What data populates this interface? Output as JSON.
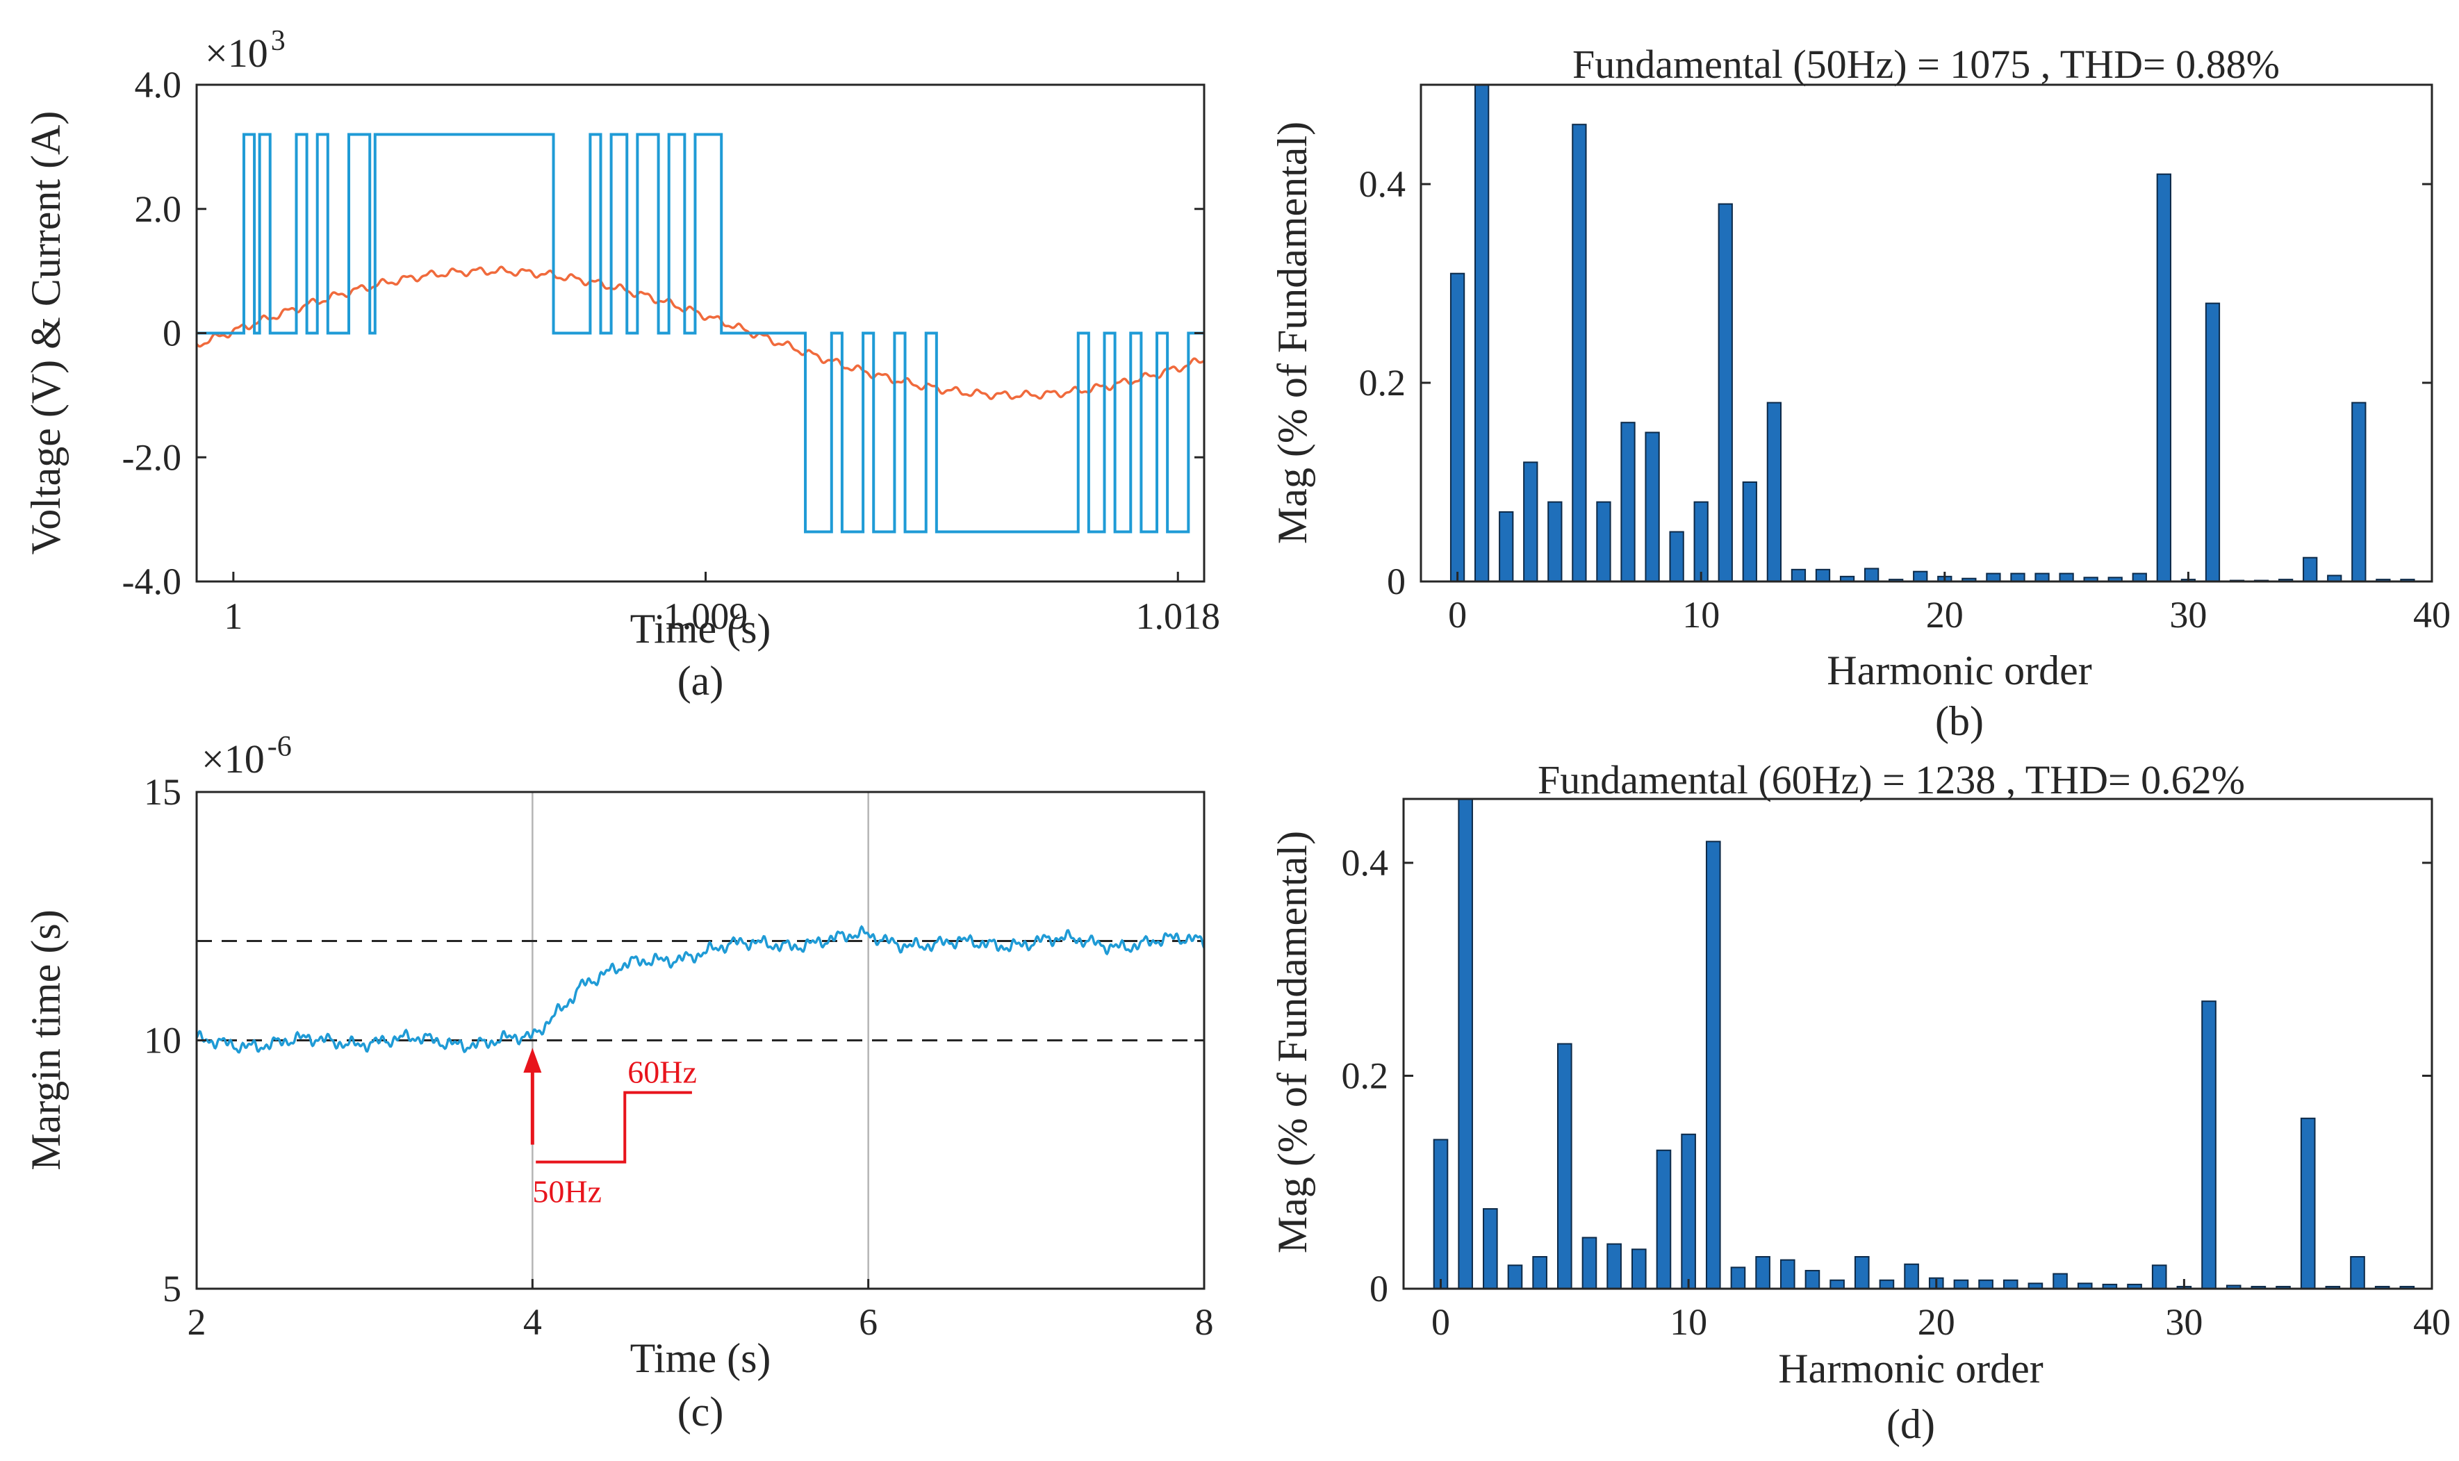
{
  "chart_data": [
    {
      "id": "a",
      "type": "line",
      "caption": "(a)",
      "xlabel": "Time (s)",
      "ylabel": "Voltage (V) & Current (A)",
      "multiplier": "×10",
      "multiplier_exp": "3",
      "xlim": [
        0.9993,
        1.0185
      ],
      "ylim": [
        -4.0,
        4.0
      ],
      "xticks": [
        1,
        1.009,
        1.018
      ],
      "xtick_labels": [
        "1",
        "1.009",
        "1.018"
      ],
      "yticks": [
        -4.0,
        -2.0,
        0,
        2.0,
        4.0
      ],
      "ytick_labels": [
        "-4.0",
        "-2.0",
        "0",
        "2.0",
        "4.0"
      ],
      "series": [
        {
          "name": "Voltage",
          "color": "#1f9bd6",
          "level": 3.2,
          "positive_transitions": [
            1.0002,
            1.0004,
            1.0005,
            1.0007,
            1.0012,
            1.0014,
            1.0016,
            1.0018,
            1.0022,
            1.0026,
            1.0027,
            1.0061,
            1.0068,
            1.007,
            1.0072,
            1.0075,
            1.0077,
            1.0081,
            1.0083,
            1.0086,
            1.0088,
            1.0093
          ],
          "negative_transitions": [
            1.0109,
            1.0114,
            1.0116,
            1.012,
            1.0122,
            1.0126,
            1.0128,
            1.0132,
            1.0134,
            1.0161,
            1.0163,
            1.0166,
            1.0168,
            1.0171,
            1.0173,
            1.0176,
            1.0178,
            1.0182
          ],
          "t_start_pos": 1.0002,
          "t_end_pos": 1.0093,
          "t_start_neg": 1.0109,
          "t_end_neg": 1.0182
        },
        {
          "name": "Current",
          "color": "#f06a3c",
          "amplitude": 1.0,
          "frequency_hz": 50,
          "peak_time": 1.0049,
          "ripple": 0.05
        }
      ]
    },
    {
      "id": "b",
      "type": "bar",
      "caption": "(b)",
      "title": "Fundamental (50Hz) = 1075 , THD= 0.88%",
      "xlabel": "Harmonic order",
      "ylabel": "Mag (% of Fundamental)",
      "bar_color": "#1f6fba",
      "xlim": [
        -1.5,
        40
      ],
      "ylim": [
        0,
        0.5
      ],
      "xticks": [
        0,
        10,
        20,
        30,
        40
      ],
      "yticks": [
        0,
        0.2,
        0.4
      ],
      "ytick_labels": [
        "0",
        "0.2",
        "0.4"
      ],
      "values": [
        0.31,
        0.5,
        0.07,
        0.12,
        0.08,
        0.46,
        0.08,
        0.16,
        0.15,
        0.05,
        0.08,
        0.38,
        0.1,
        0.18,
        0.012,
        0.012,
        0.005,
        0.013,
        0.002,
        0.01,
        0.005,
        0.003,
        0.008,
        0.008,
        0.008,
        0.008,
        0.004,
        0.004,
        0.008,
        0.41,
        0.002,
        0.28,
        0.001,
        0.001,
        0.002,
        0.024,
        0.006,
        0.18,
        0.002,
        0.002
      ]
    },
    {
      "id": "c",
      "type": "line",
      "caption": "(c)",
      "xlabel": "Time (s)",
      "ylabel": "Margin time (s)",
      "multiplier": "×10",
      "multiplier_exp": "-6",
      "xlim": [
        2,
        8
      ],
      "ylim": [
        5,
        15
      ],
      "xticks": [
        2,
        4,
        6,
        8
      ],
      "yticks": [
        5,
        10,
        15
      ],
      "reference_lines": [
        10,
        12
      ],
      "vertical_gridlines": [
        4,
        6
      ],
      "series": [
        {
          "name": "Margin time",
          "color": "#1f9bd6",
          "x": [
            2.0,
            2.5,
            3.0,
            3.5,
            3.9,
            4.0,
            4.15,
            4.3,
            4.6,
            5.0,
            5.4,
            5.8,
            6.0,
            6.4,
            7.0,
            7.5,
            8.0
          ],
          "y": [
            9.95,
            9.95,
            10.0,
            9.97,
            10.0,
            10.0,
            10.6,
            11.2,
            11.5,
            11.8,
            11.95,
            12.0,
            12.1,
            11.9,
            12.0,
            11.95,
            12.0
          ]
        }
      ],
      "annotation": {
        "arrow_at_x": 4,
        "step_from": "50Hz",
        "step_to": "60Hz",
        "arrow_color": "#e8141c"
      }
    },
    {
      "id": "d",
      "type": "bar",
      "caption": "(d)",
      "title": "Fundamental (60Hz) = 1238 , THD= 0.62%",
      "xlabel": "Harmonic order",
      "ylabel": "Mag (% of Fundamental)",
      "bar_color": "#1f6fba",
      "xlim": [
        -1.5,
        40
      ],
      "ylim": [
        0,
        0.46
      ],
      "xticks": [
        0,
        10,
        20,
        30,
        40
      ],
      "yticks": [
        0,
        0.2,
        0.4
      ],
      "ytick_labels": [
        "0",
        "0.2",
        "0.4"
      ],
      "values": [
        0.14,
        0.46,
        0.075,
        0.022,
        0.03,
        0.23,
        0.048,
        0.042,
        0.037,
        0.13,
        0.145,
        0.42,
        0.02,
        0.03,
        0.027,
        0.017,
        0.008,
        0.03,
        0.008,
        0.023,
        0.01,
        0.008,
        0.008,
        0.008,
        0.005,
        0.014,
        0.005,
        0.004,
        0.004,
        0.022,
        0.002,
        0.27,
        0.003,
        0.002,
        0.002,
        0.16,
        0.002,
        0.03,
        0.002,
        0.002
      ]
    }
  ]
}
